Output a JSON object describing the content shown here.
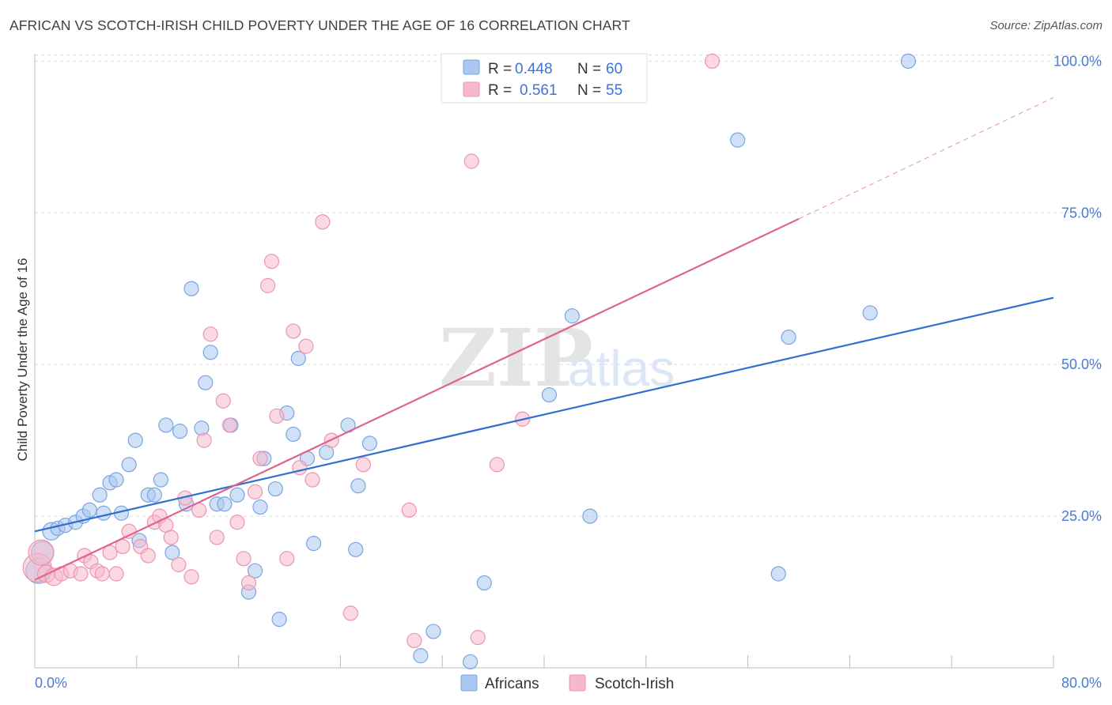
{
  "title": "AFRICAN VS SCOTCH-IRISH CHILD POVERTY UNDER THE AGE OF 16 CORRELATION CHART",
  "source": "Source: ZipAtlas.com",
  "watermark": {
    "zip": "ZIP",
    "atlas": "atlas"
  },
  "legend_top": [
    {
      "r_label": "R =",
      "r_value": "0.448",
      "n_label": "N =",
      "n_value": "60"
    },
    {
      "r_label": "R =",
      "r_value": "0.561",
      "n_label": "N =",
      "n_value": "55"
    }
  ],
  "legend_bottom": [
    "Africans",
    "Scotch-Irish"
  ],
  "colors": {
    "africans_fill": "#a9c7ef",
    "africans_stroke": "#7aa5e0",
    "africans_line": "#2f6fd0",
    "scotch_fill": "#f6b9cc",
    "scotch_stroke": "#ee94b0",
    "scotch_line": "#e0638e",
    "tick": "#4a7bd0",
    "grid": "#dddddd"
  },
  "chart_data": {
    "type": "scatter",
    "title": "AFRICAN VS SCOTCH-IRISH CHILD POVERTY UNDER THE AGE OF 16 CORRELATION CHART",
    "xlabel": "",
    "ylabel": "Child Poverty Under the Age of 16",
    "xlim": [
      0,
      80
    ],
    "ylim": [
      0,
      102
    ],
    "x_ticks_labeled": [
      "0.0%",
      "80.0%"
    ],
    "y_ticks": [
      {
        "value": 25,
        "label": "25.0%"
      },
      {
        "value": 50,
        "label": "50.0%"
      },
      {
        "value": 75,
        "label": "75.0%"
      },
      {
        "value": 100,
        "label": "100.0%"
      }
    ],
    "grid": "horizontal dashed",
    "legend_position": "top-center",
    "series": [
      {
        "name": "Africans",
        "r": 0.448,
        "n": 60,
        "trend": {
          "x0": 0,
          "y0": 22.5,
          "x1": 80,
          "y1": 61
        },
        "points": [
          [
            0.3,
            16,
            16
          ],
          [
            0.6,
            19,
            14
          ],
          [
            1.3,
            22.5,
            11
          ],
          [
            1.8,
            23,
            9
          ],
          [
            2.4,
            23.5,
            9
          ],
          [
            3.2,
            24,
            9
          ],
          [
            3.8,
            25,
            9
          ],
          [
            4.3,
            26,
            9
          ],
          [
            5.1,
            28.5,
            9
          ],
          [
            5.4,
            25.5,
            9
          ],
          [
            5.9,
            30.5,
            9
          ],
          [
            6.4,
            31,
            9
          ],
          [
            6.8,
            25.5,
            9
          ],
          [
            7.4,
            33.5,
            9
          ],
          [
            7.9,
            37.5,
            9
          ],
          [
            8.2,
            21,
            9
          ],
          [
            8.9,
            28.5,
            9
          ],
          [
            9.4,
            28.5,
            9
          ],
          [
            9.9,
            31,
            9
          ],
          [
            10.3,
            40,
            9
          ],
          [
            10.8,
            19,
            9
          ],
          [
            11.4,
            39,
            9
          ],
          [
            11.9,
            27,
            9
          ],
          [
            12.3,
            62.5,
            9
          ],
          [
            13.1,
            39.5,
            9
          ],
          [
            13.4,
            47,
            9
          ],
          [
            13.8,
            52,
            9
          ],
          [
            14.3,
            27,
            9
          ],
          [
            14.9,
            27,
            9
          ],
          [
            15.4,
            40,
            9
          ],
          [
            15.9,
            28.5,
            9
          ],
          [
            16.8,
            12.5,
            9
          ],
          [
            17.3,
            16,
            9
          ],
          [
            17.7,
            26.5,
            9
          ],
          [
            18.0,
            34.5,
            9
          ],
          [
            18.9,
            29.5,
            9
          ],
          [
            19.2,
            8,
            9
          ],
          [
            19.8,
            42,
            9
          ],
          [
            20.3,
            38.5,
            9
          ],
          [
            20.7,
            51,
            9
          ],
          [
            21.4,
            34.5,
            9
          ],
          [
            21.9,
            20.5,
            9
          ],
          [
            22.9,
            35.5,
            9
          ],
          [
            24.6,
            40,
            9
          ],
          [
            25.2,
            19.5,
            9
          ],
          [
            25.4,
            30,
            9
          ],
          [
            26.3,
            37,
            9
          ],
          [
            30.3,
            2,
            9
          ],
          [
            31.3,
            6,
            9
          ],
          [
            34.2,
            1,
            9
          ],
          [
            35.3,
            14,
            9
          ],
          [
            40.4,
            45,
            9
          ],
          [
            42.2,
            58,
            9
          ],
          [
            43.6,
            25,
            9
          ],
          [
            55.2,
            87,
            9
          ],
          [
            58.4,
            15.5,
            9
          ],
          [
            59.2,
            54.5,
            9
          ],
          [
            65.6,
            58.5,
            9
          ],
          [
            68.6,
            100,
            9
          ]
        ]
      },
      {
        "name": "Scotch-Irish",
        "r": 0.561,
        "n": 55,
        "trend": {
          "x0": 0,
          "y0": 14.5,
          "x1": 60,
          "y1": 74,
          "dashed_to": {
            "x": 80,
            "y": 94
          }
        },
        "points": [
          [
            0.2,
            16.5,
            18
          ],
          [
            0.5,
            19,
            16
          ],
          [
            0.9,
            15.5,
            11
          ],
          [
            1.5,
            15,
            11
          ],
          [
            2.1,
            15.5,
            9
          ],
          [
            2.8,
            16,
            9
          ],
          [
            3.6,
            15.5,
            9
          ],
          [
            3.9,
            18.5,
            9
          ],
          [
            4.4,
            17.5,
            9
          ],
          [
            4.9,
            16,
            9
          ],
          [
            5.3,
            15.5,
            9
          ],
          [
            5.9,
            19,
            9
          ],
          [
            6.4,
            15.5,
            9
          ],
          [
            6.9,
            20,
            9
          ],
          [
            7.4,
            22.5,
            9
          ],
          [
            8.3,
            20,
            9
          ],
          [
            8.9,
            18.5,
            9
          ],
          [
            9.4,
            24,
            9
          ],
          [
            9.8,
            25,
            9
          ],
          [
            10.3,
            23.5,
            9
          ],
          [
            10.7,
            21.5,
            9
          ],
          [
            11.3,
            17,
            9
          ],
          [
            11.8,
            28,
            9
          ],
          [
            12.3,
            15,
            9
          ],
          [
            12.9,
            26,
            9
          ],
          [
            13.3,
            37.5,
            9
          ],
          [
            13.8,
            55,
            9
          ],
          [
            14.3,
            21.5,
            9
          ],
          [
            14.8,
            44,
            9
          ],
          [
            15.3,
            40,
            9
          ],
          [
            15.9,
            24,
            9
          ],
          [
            16.4,
            18,
            9
          ],
          [
            16.8,
            14,
            9
          ],
          [
            17.3,
            29,
            9
          ],
          [
            17.7,
            34.5,
            9
          ],
          [
            18.3,
            63,
            9
          ],
          [
            18.6,
            67,
            9
          ],
          [
            19.0,
            41.5,
            9
          ],
          [
            19.8,
            18,
            9
          ],
          [
            20.3,
            55.5,
            9
          ],
          [
            20.8,
            33,
            9
          ],
          [
            21.3,
            53,
            9
          ],
          [
            21.8,
            31,
            9
          ],
          [
            22.6,
            73.5,
            9
          ],
          [
            23.3,
            37.5,
            9
          ],
          [
            24.8,
            9,
            9
          ],
          [
            25.8,
            33.5,
            9
          ],
          [
            29.4,
            26,
            9
          ],
          [
            29.8,
            4.5,
            9
          ],
          [
            34.3,
            83.5,
            9
          ],
          [
            34.8,
            5,
            9
          ],
          [
            36.3,
            33.5,
            9
          ],
          [
            38.3,
            41,
            9
          ],
          [
            53.2,
            100,
            9
          ]
        ]
      }
    ]
  }
}
